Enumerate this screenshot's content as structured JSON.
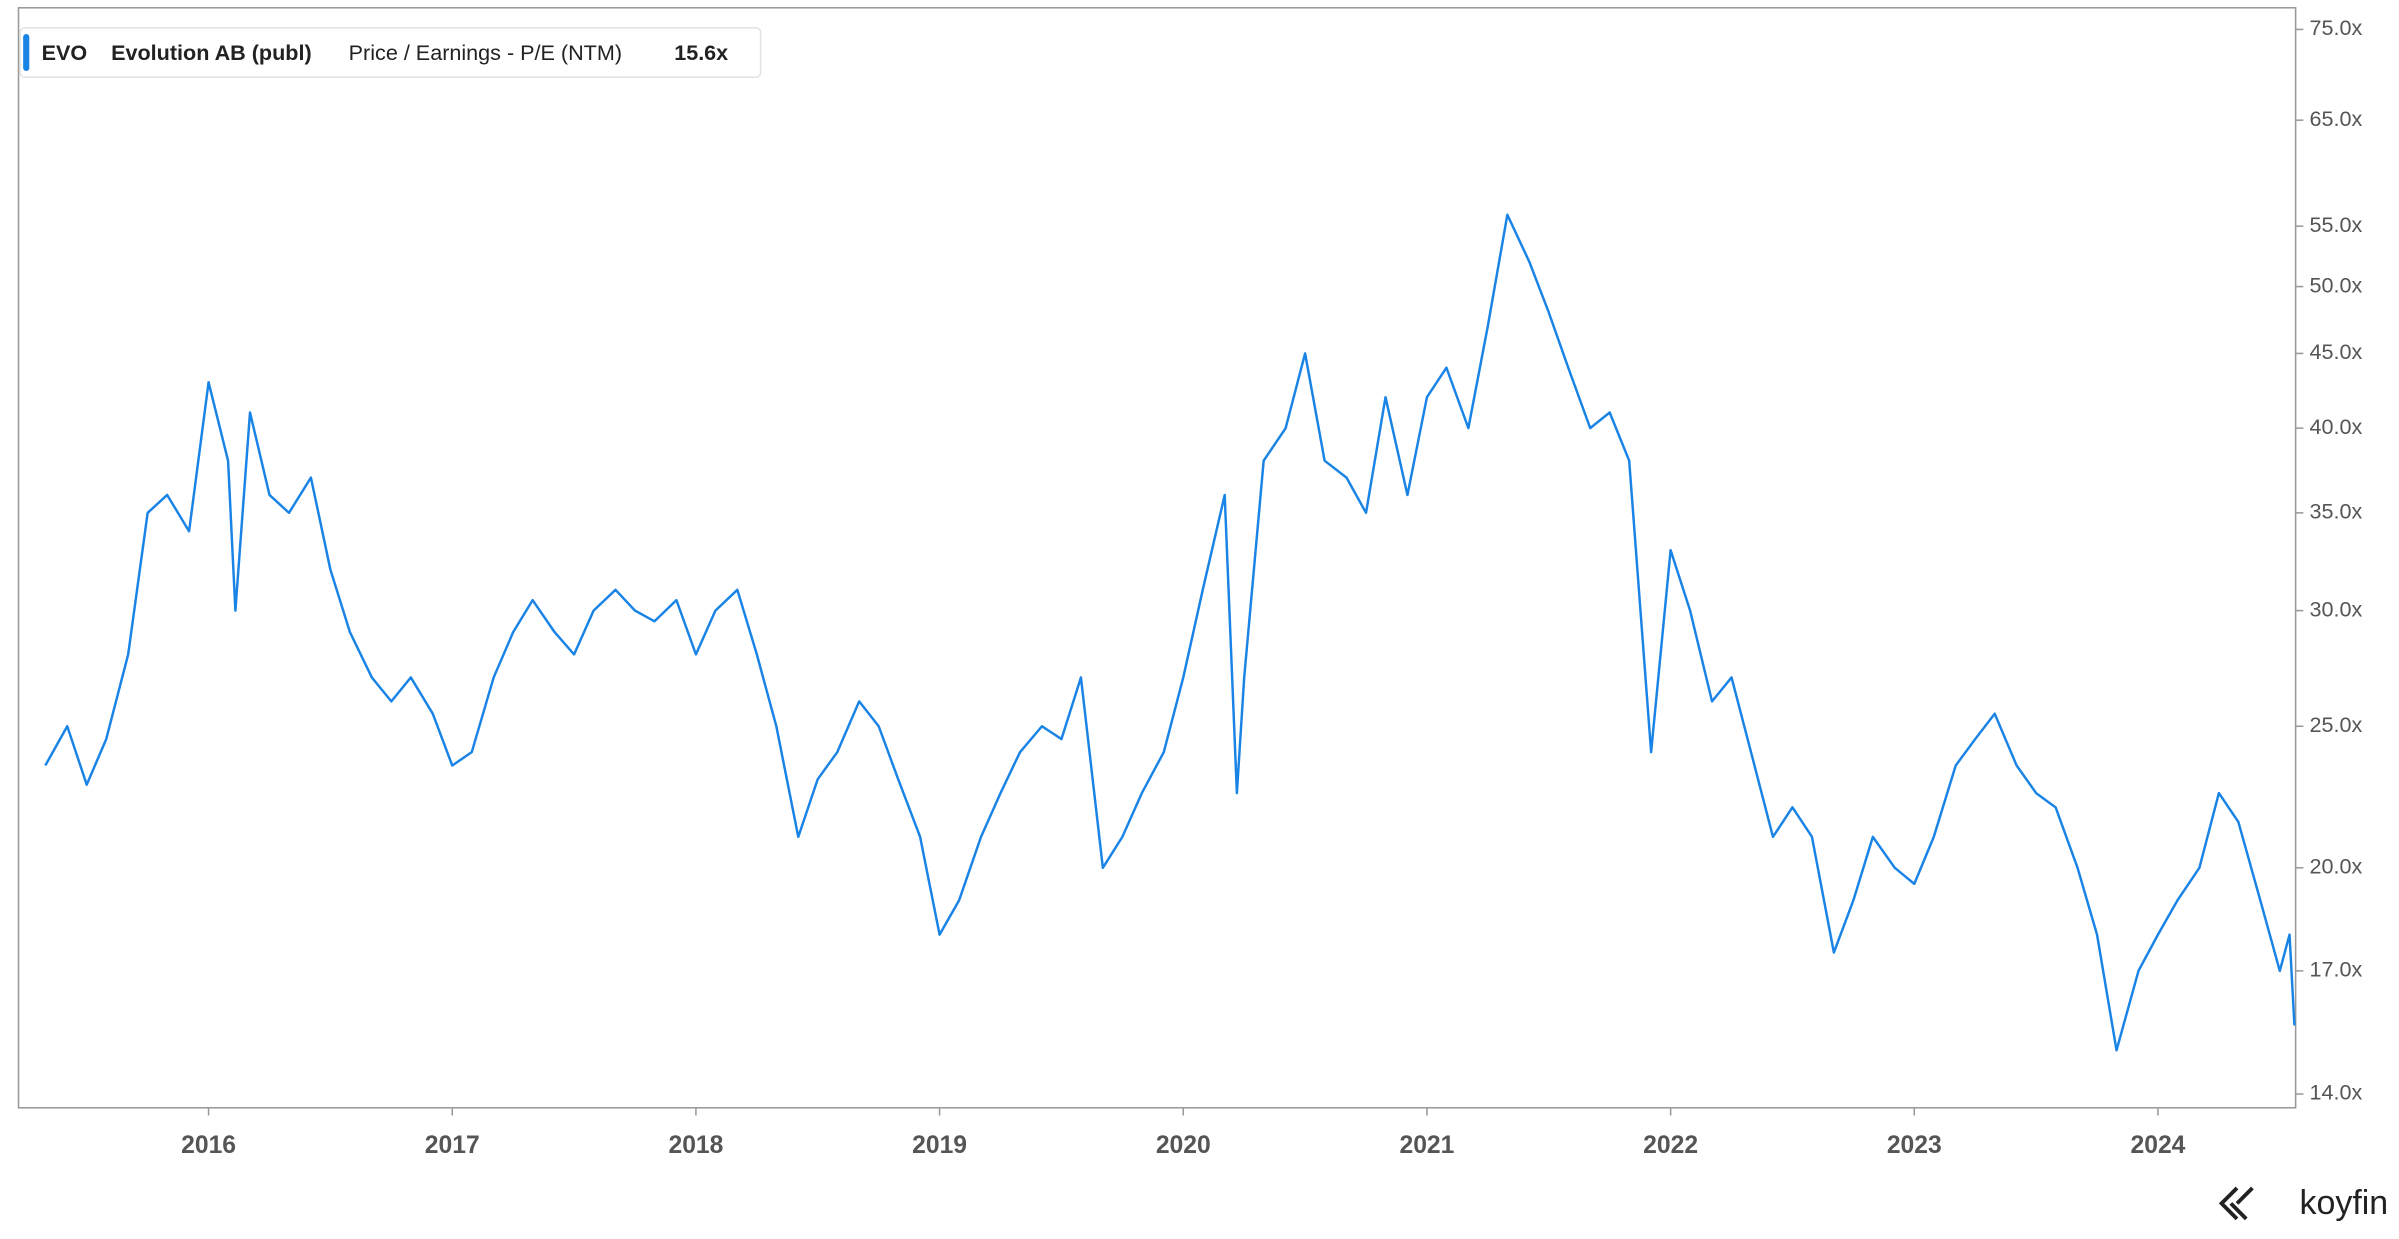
{
  "chart_data": {
    "type": "line",
    "log_scale": true,
    "logo": "koyfin",
    "x": [
      2015.33,
      2015.42,
      2015.5,
      2015.58,
      2015.67,
      2015.75,
      2015.83,
      2015.92,
      2016.0,
      2016.08,
      2016.11,
      2016.17,
      2016.25,
      2016.33,
      2016.42,
      2016.5,
      2016.58,
      2016.67,
      2016.75,
      2016.83,
      2016.92,
      2017.0,
      2017.08,
      2017.17,
      2017.25,
      2017.33,
      2017.42,
      2017.5,
      2017.58,
      2017.67,
      2017.75,
      2017.83,
      2017.92,
      2018.0,
      2018.08,
      2018.17,
      2018.25,
      2018.33,
      2018.42,
      2018.5,
      2018.58,
      2018.67,
      2018.75,
      2018.83,
      2018.92,
      2019.0,
      2019.08,
      2019.17,
      2019.25,
      2019.33,
      2019.42,
      2019.5,
      2019.58,
      2019.67,
      2019.75,
      2019.83,
      2019.92,
      2020.0,
      2020.08,
      2020.17,
      2020.22,
      2020.25,
      2020.33,
      2020.42,
      2020.5,
      2020.58,
      2020.67,
      2020.75,
      2020.83,
      2020.92,
      2021.0,
      2021.08,
      2021.17,
      2021.25,
      2021.33,
      2021.42,
      2021.5,
      2021.58,
      2021.67,
      2021.75,
      2021.83,
      2021.92,
      2022.0,
      2022.08,
      2022.17,
      2022.25,
      2022.33,
      2022.42,
      2022.5,
      2022.58,
      2022.67,
      2022.75,
      2022.83,
      2022.92,
      2023.0,
      2023.08,
      2023.17,
      2023.25,
      2023.33,
      2023.42,
      2023.5,
      2023.58,
      2023.67,
      2023.75,
      2023.83,
      2023.92,
      2024.0,
      2024.08,
      2024.17,
      2024.25,
      2024.33,
      2024.42,
      2024.5,
      2024.54,
      2024.56
    ],
    "series": [
      {
        "name": "EVO",
        "company": "Evolution AB (publ)",
        "metric": "Price / Earnings - P/E (NTM)",
        "last_label": "15.6x",
        "color": "#1a84e6",
        "values": [
          23.5,
          25,
          22.8,
          24.5,
          28,
          35,
          36,
          34,
          43,
          38,
          30,
          41,
          36,
          35,
          37,
          32,
          29,
          27,
          26,
          27,
          25.5,
          23.5,
          24,
          27,
          29,
          30.5,
          29,
          28,
          30,
          31,
          30,
          29.5,
          30.5,
          28,
          30,
          31,
          28,
          25,
          21,
          23,
          24,
          26,
          25,
          23,
          21,
          18,
          19,
          21,
          22.5,
          24,
          25,
          24.5,
          27,
          20,
          21,
          22.5,
          24,
          27,
          31,
          36,
          22.5,
          27,
          38,
          40,
          45,
          38,
          37,
          35,
          42,
          36,
          42,
          44,
          40,
          47,
          56,
          52,
          48,
          44,
          40,
          41,
          38,
          24,
          33,
          30,
          26,
          27,
          24,
          21,
          22,
          21,
          17.5,
          19,
          21,
          20,
          19.5,
          21,
          23.5,
          24.5,
          25.5,
          23.5,
          22.5,
          22,
          20,
          18,
          15,
          17,
          18,
          19,
          20,
          22.5,
          21.5,
          19,
          17,
          18,
          15.6
        ]
      }
    ],
    "xlim": [
      2015.22,
      2024.565
    ],
    "xticks": [
      2016,
      2017,
      2018,
      2019,
      2020,
      2021,
      2022,
      2023,
      2024
    ],
    "ylim": [
      13.7,
      77.6
    ],
    "yticks": [
      {
        "value": 14,
        "label": "14.0x"
      },
      {
        "value": 17,
        "label": "17.0x"
      },
      {
        "value": 20,
        "label": "20.0x"
      },
      {
        "value": 25,
        "label": "25.0x"
      },
      {
        "value": 30,
        "label": "30.0x"
      },
      {
        "value": 35,
        "label": "35.0x"
      },
      {
        "value": 40,
        "label": "40.0x"
      },
      {
        "value": 45,
        "label": "45.0x"
      },
      {
        "value": 50,
        "label": "50.0x"
      },
      {
        "value": 55,
        "label": "55.0x"
      },
      {
        "value": 65,
        "label": "65.0x"
      },
      {
        "value": 75,
        "label": "75.0x"
      }
    ]
  }
}
